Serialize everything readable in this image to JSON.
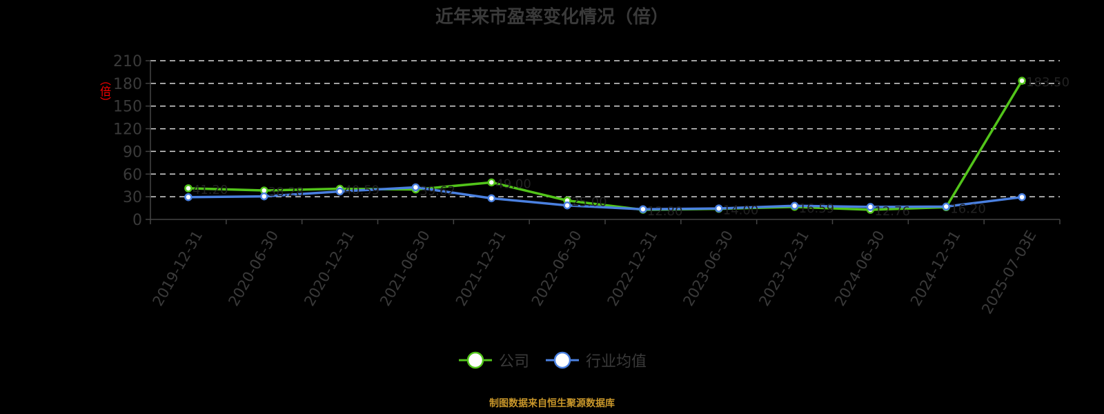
{
  "chart_data": {
    "type": "line",
    "title": "近年来市盈率变化情况（倍）",
    "xlabel": "",
    "ylabel": "（倍）",
    "ylim": [
      0,
      210
    ],
    "yticks": [
      0,
      30,
      60,
      90,
      120,
      150,
      180,
      210
    ],
    "grid": true,
    "legend_position": "bottom",
    "categories": [
      "2019-12-31",
      "2020-06-30",
      "2020-12-31",
      "2021-06-30",
      "2021-12-31",
      "2022-06-30",
      "2022-12-31",
      "2023-06-30",
      "2023-12-31",
      "2024-06-30",
      "2024-12-31",
      "2025-07-03E"
    ],
    "series": [
      {
        "name": "公司",
        "color": "#52c41a",
        "values": [
          41.2,
          38.28,
          40.59,
          39.62,
          49.0,
          25.0,
          12.8,
          14.0,
          16.59,
          12.76,
          16.2,
          183.5
        ]
      },
      {
        "name": "行业均值",
        "color": "#4a80e0",
        "values": [
          29.5,
          30.5,
          37.0,
          42.5,
          28.0,
          18.5,
          13.5,
          14.5,
          18.0,
          16.5,
          17.0,
          29.5
        ]
      }
    ],
    "source": "制图数据来自恒生聚源数据库"
  }
}
